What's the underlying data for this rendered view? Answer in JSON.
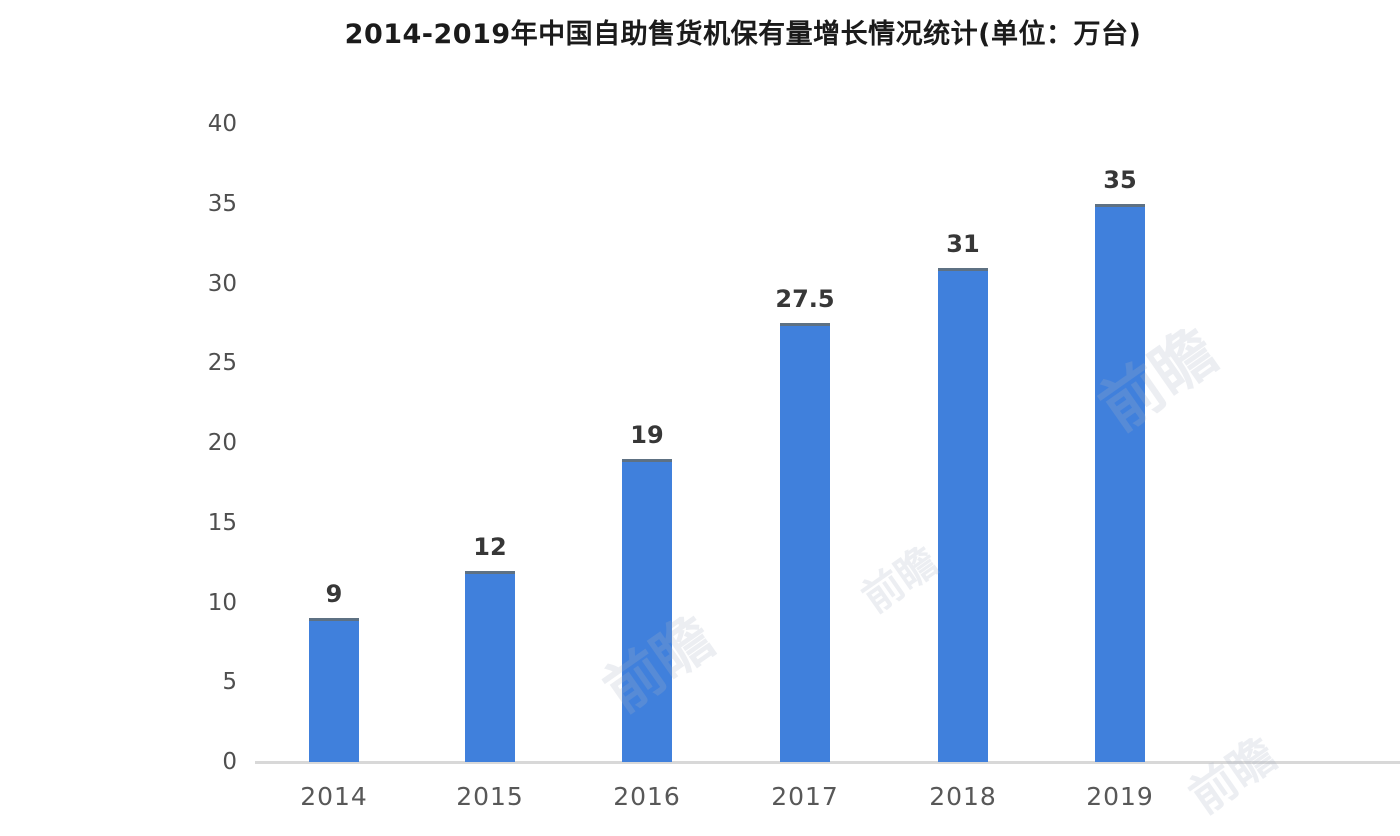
{
  "chart_data": {
    "type": "bar",
    "title": "2014-2019年中国自助售货机保有量增长情况统计(单位：万台)",
    "categories": [
      "2014",
      "2015",
      "2016",
      "2017",
      "2018",
      "2019"
    ],
    "values": [
      9,
      12,
      19,
      27.5,
      31,
      35
    ],
    "bar_labels": [
      "9",
      "12",
      "19",
      "27.5",
      "31",
      "35"
    ],
    "yticks": [
      0,
      5,
      10,
      15,
      20,
      25,
      30,
      35,
      40
    ],
    "ylim": [
      0,
      40
    ],
    "xlabel": "",
    "ylabel": "",
    "unit": "万台",
    "grid": false,
    "legend_position": "none",
    "bar_color": "#4080DC",
    "axis_line_color": "#d8d8d8",
    "title_color": "#1b1b1b",
    "tick_label_color": "#4f4f4f",
    "value_label_color": "#373737"
  },
  "watermark": {
    "text": "前瞻"
  }
}
